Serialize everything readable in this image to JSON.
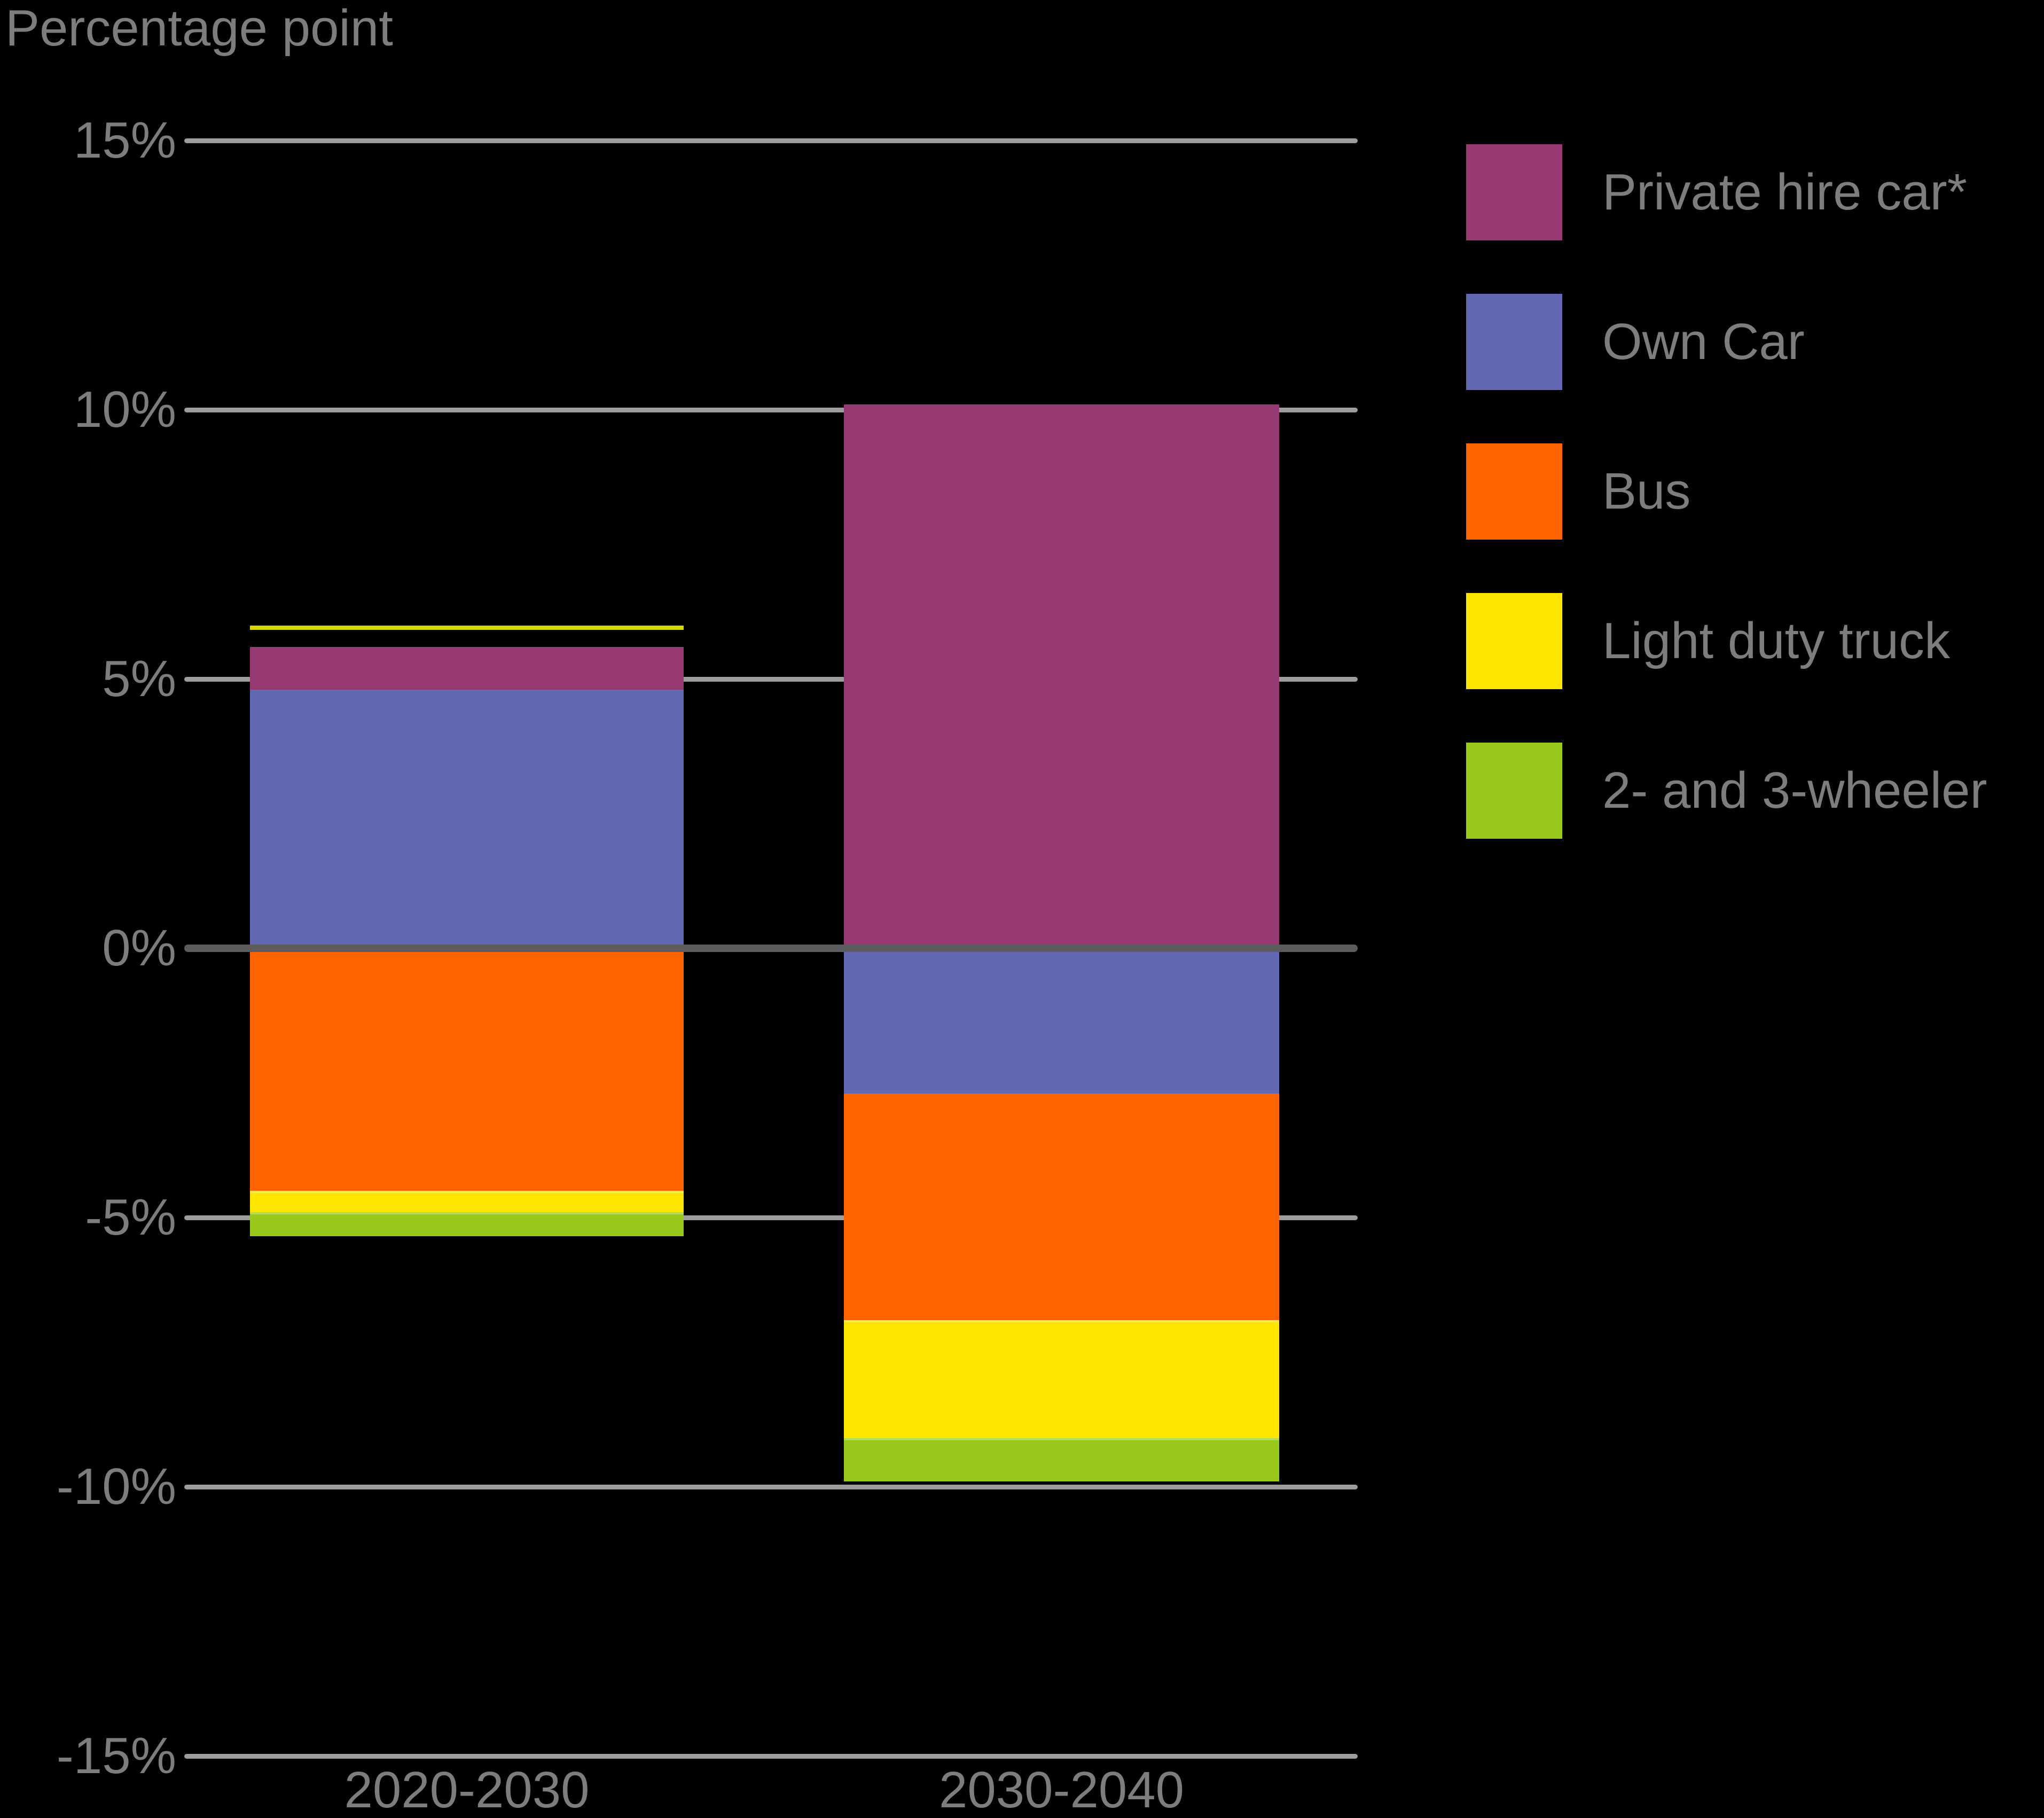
{
  "title": "Percentage point",
  "colors": {
    "background": "#000000",
    "text": "#7d7d7d",
    "gridline": "#9d9d9d",
    "zero_line": "#5c5c5e",
    "marker_line": "#d5d900"
  },
  "y_axis": {
    "ticks": [
      "15%",
      "10%",
      "5%",
      "0%",
      "-5%",
      "-10%",
      "-15%"
    ],
    "values": [
      15,
      10,
      5,
      0,
      -5,
      -10,
      -15
    ]
  },
  "x_axis": {
    "labels": [
      "2020-2030",
      "2030-2040"
    ]
  },
  "legend": {
    "items": [
      {
        "label": "Private hire car*",
        "color": "#973a73"
      },
      {
        "label": "Own Car",
        "color": "#6269b2"
      },
      {
        "label": "Bus",
        "color": "#ff6400"
      },
      {
        "label": "Light duty truck",
        "color": "#ffe600"
      },
      {
        "label": "2- and 3-wheeler",
        "color": "#98c91c"
      }
    ]
  },
  "chart_data": {
    "type": "bar",
    "stacked": true,
    "title": "Percentage point",
    "categories": [
      "2020-2030",
      "2030-2040"
    ],
    "series": [
      {
        "name": "Own Car",
        "color": "#6269b2",
        "values": [
          4.8,
          -2.7
        ]
      },
      {
        "name": "Private hire car*",
        "color": "#973a73",
        "values": [
          0.8,
          10.1
        ]
      },
      {
        "name": "Bus",
        "color": "#ff6400",
        "values": [
          -4.5,
          -4.2
        ]
      },
      {
        "name": "Light duty truck",
        "color": "#ffe600",
        "values": [
          -0.4,
          -2.2
        ]
      },
      {
        "name": "2- and 3-wheeler",
        "color": "#98c91c",
        "values": [
          -0.45,
          -0.8
        ]
      }
    ],
    "marker": {
      "category_index": 0,
      "value": 5.95,
      "color": "#d5d900",
      "note": "thin line above 2020-2030 bar"
    },
    "ylabel": "Percentage point",
    "ylim": [
      -15,
      15
    ],
    "grid": true,
    "legend_position": "right"
  }
}
